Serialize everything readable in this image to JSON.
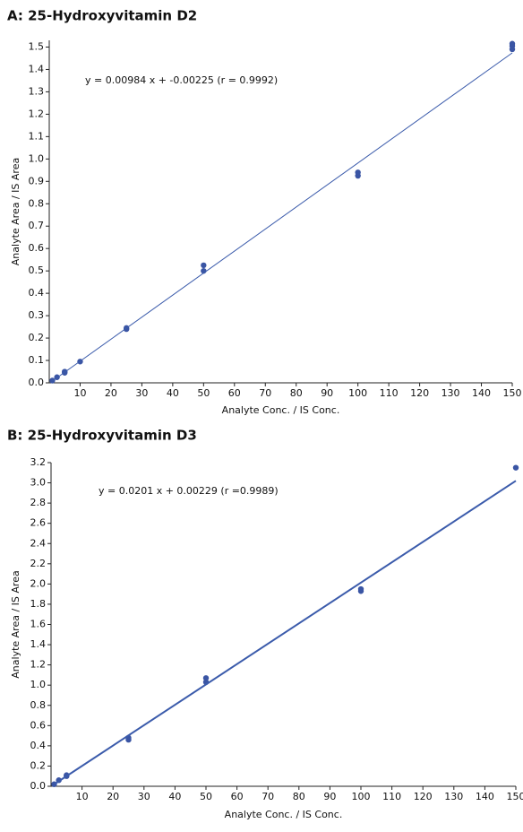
{
  "chart_data": [
    {
      "type": "scatter",
      "title": "A: 25-Hydroxyvitamin D2",
      "annotation": "y = 0.00984 x + -0.00225 (r = 0.9992)",
      "xlabel": "Analyte Conc. / IS Conc.",
      "ylabel": "Analyte Area / IS Area",
      "xlim": [
        0,
        150
      ],
      "ylim": [
        0,
        1.53
      ],
      "xticks": [
        10,
        20,
        30,
        40,
        50,
        60,
        70,
        80,
        90,
        100,
        110,
        120,
        130,
        140,
        150
      ],
      "yticks": [
        {
          "value": 0,
          "label": "0.0"
        },
        0.1,
        0.2,
        0.3,
        0.4,
        0.5,
        0.6,
        0.7,
        0.8,
        0.9,
        {
          "value": 1,
          "label": "1.0"
        },
        1.1,
        1.2,
        1.3,
        1.4,
        1.5
      ],
      "series": [
        {
          "type": "scatter",
          "color": "#3a55a4",
          "x": [
            1,
            2.5,
            5,
            5,
            10,
            25,
            25,
            50,
            50,
            100,
            100,
            150,
            150,
            150
          ],
          "values": [
            0.01,
            0.025,
            0.045,
            0.05,
            0.095,
            0.24,
            0.245,
            0.5,
            0.525,
            0.925,
            0.94,
            1.49,
            1.505,
            1.515
          ]
        },
        {
          "type": "line",
          "color": "#3b5bab",
          "x": [
            1,
            150
          ],
          "values": [
            0.008,
            1.474
          ]
        }
      ]
    },
    {
      "type": "scatter",
      "title": "B: 25-Hydroxyvitamin D3",
      "annotation": "y = 0.0201 x + 0.00229 (r =0.9989)",
      "xlabel": "Analyte Conc. / IS Conc.",
      "ylabel": "Analyte Area / IS Area",
      "xlim": [
        0,
        150
      ],
      "ylim": [
        0,
        3.2
      ],
      "xticks": [
        10,
        20,
        30,
        40,
        50,
        60,
        70,
        80,
        90,
        100,
        110,
        120,
        130,
        140,
        150
      ],
      "yticks": [
        {
          "value": 0,
          "label": "0.0"
        },
        0.2,
        0.4,
        0.6,
        0.8,
        {
          "value": 1,
          "label": "1.0"
        },
        1.2,
        1.4,
        1.6,
        1.8,
        {
          "value": 2,
          "label": "2.0"
        },
        2.2,
        2.4,
        2.6,
        2.8,
        {
          "value": 3,
          "label": "3.0"
        },
        3.2
      ],
      "series": [
        {
          "type": "scatter",
          "color": "#3a55a4",
          "x": [
            1,
            2.5,
            5,
            5,
            25,
            25,
            50,
            50,
            100,
            100,
            150
          ],
          "values": [
            0.02,
            0.06,
            0.1,
            0.11,
            0.46,
            0.48,
            1.03,
            1.07,
            1.93,
            1.95,
            3.15
          ]
        },
        {
          "type": "line",
          "color": "#3b5bab",
          "x": [
            1,
            150
          ],
          "values": [
            0.02,
            3.02
          ]
        }
      ]
    }
  ]
}
